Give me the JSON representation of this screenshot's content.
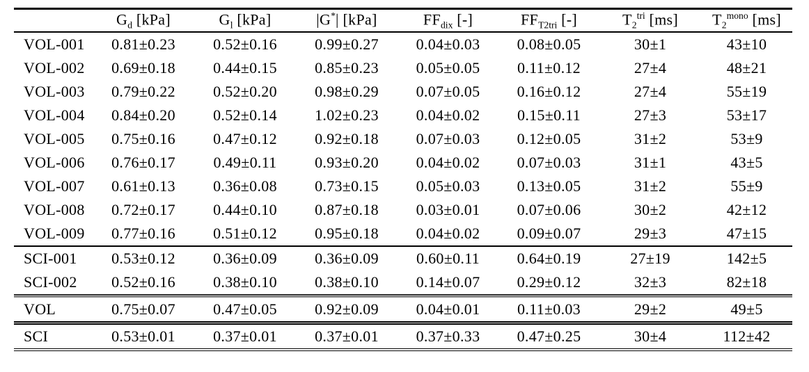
{
  "table": {
    "columns": [
      {
        "base": "",
        "after": ""
      },
      {
        "base": "G",
        "sub": "d",
        "after": " [kPa]"
      },
      {
        "base": "G",
        "sub": "l",
        "after": " [kPa]"
      },
      {
        "base": "|G",
        "sup": "*",
        "after": "| [kPa]"
      },
      {
        "base": "FF",
        "sub": "dix",
        "after": " [-]"
      },
      {
        "base": "FF",
        "sub": "T2tri",
        "after": " [-]"
      },
      {
        "base": "T",
        "sub": "2",
        "sup": "tri",
        "after": " [ms]"
      },
      {
        "base": "T",
        "sub": "2",
        "sup": "mono",
        "after": " [ms]"
      }
    ],
    "groups": [
      {
        "name": "volunteers",
        "rows": [
          {
            "label": "VOL-001",
            "values": [
              "0.81±0.23",
              "0.52±0.16",
              "0.99±0.27",
              "0.04±0.03",
              "0.08±0.05",
              "30±1",
              "43±10"
            ]
          },
          {
            "label": "VOL-002",
            "values": [
              "0.69±0.18",
              "0.44±0.15",
              "0.85±0.23",
              "0.05±0.05",
              "0.11±0.12",
              "27±4",
              "48±21"
            ]
          },
          {
            "label": "VOL-003",
            "values": [
              "0.79±0.22",
              "0.52±0.20",
              "0.98±0.29",
              "0.07±0.05",
              "0.16±0.12",
              "27±4",
              "55±19"
            ]
          },
          {
            "label": "VOL-004",
            "values": [
              "0.84±0.20",
              "0.52±0.14",
              "1.02±0.23",
              "0.04±0.02",
              "0.15±0.11",
              "27±3",
              "53±17"
            ]
          },
          {
            "label": "VOL-005",
            "values": [
              "0.75±0.16",
              "0.47±0.12",
              "0.92±0.18",
              "0.07±0.03",
              "0.12±0.05",
              "31±2",
              "53±9"
            ]
          },
          {
            "label": "VOL-006",
            "values": [
              "0.76±0.17",
              "0.49±0.11",
              "0.93±0.20",
              "0.04±0.02",
              "0.07±0.03",
              "31±1",
              "43±5"
            ]
          },
          {
            "label": "VOL-007",
            "values": [
              "0.61±0.13",
              "0.36±0.08",
              "0.73±0.15",
              "0.05±0.03",
              "0.13±0.05",
              "31±2",
              "55±9"
            ]
          },
          {
            "label": "VOL-008",
            "values": [
              "0.72±0.17",
              "0.44±0.10",
              "0.87±0.18",
              "0.03±0.01",
              "0.07±0.06",
              "30±2",
              "42±12"
            ]
          },
          {
            "label": "VOL-009",
            "values": [
              "0.77±0.16",
              "0.51±0.12",
              "0.95±0.18",
              "0.04±0.02",
              "0.09±0.07",
              "29±3",
              "47±15"
            ]
          }
        ]
      },
      {
        "name": "patients",
        "rows": [
          {
            "label": "SCI-001",
            "values": [
              "0.53±0.12",
              "0.36±0.09",
              "0.36±0.09",
              "0.60±0.11",
              "0.64±0.19",
              "27±19",
              "142±5"
            ]
          },
          {
            "label": "SCI-002",
            "values": [
              "0.52±0.16",
              "0.38±0.10",
              "0.38±0.10",
              "0.14±0.07",
              "0.29±0.12",
              "32±3",
              "82±18"
            ]
          }
        ]
      },
      {
        "name": "summary-vol",
        "rows": [
          {
            "label": "VOL",
            "values": [
              "0.75±0.07",
              "0.47±0.05",
              "0.92±0.09",
              "0.04±0.01",
              "0.11±0.03",
              "29±2",
              "49±5"
            ]
          }
        ]
      },
      {
        "name": "summary-sci",
        "rows": [
          {
            "label": "SCI",
            "values": [
              "0.53±0.01",
              "0.37±0.01",
              "0.37±0.01",
              "0.37±0.33",
              "0.47±0.25",
              "30±4",
              "112±42"
            ]
          }
        ]
      }
    ]
  }
}
